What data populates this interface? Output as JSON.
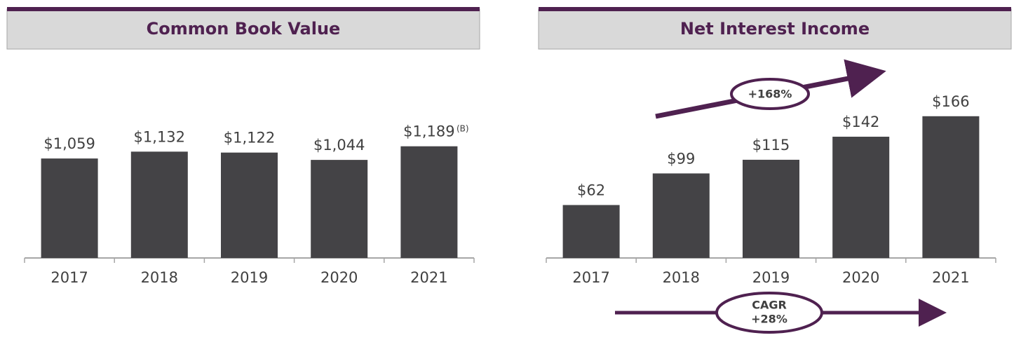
{
  "chart_data": [
    {
      "type": "bar",
      "title": "Common Book Value",
      "categories": [
        "2017",
        "2018",
        "2019",
        "2020",
        "2021"
      ],
      "values": [
        1059,
        1132,
        1122,
        1044,
        1189
      ],
      "value_labels": [
        "$1,059",
        "$1,132",
        "$1,122",
        "$1,044",
        "$1,189"
      ],
      "annotations": [
        "(B)"
      ],
      "color": "#444346",
      "ylim": [
        0,
        2000
      ]
    },
    {
      "type": "bar",
      "title": "Net Interest Income",
      "categories": [
        "2017",
        "2018",
        "2019",
        "2020",
        "2021"
      ],
      "values": [
        62,
        99,
        115,
        142,
        166
      ],
      "value_labels": [
        "$62",
        "$99",
        "$115",
        "$142",
        "$166"
      ],
      "annotations": [
        "+168%",
        "CAGR",
        "+28%"
      ],
      "color": "#444346",
      "ylim": [
        0,
        220
      ]
    }
  ]
}
